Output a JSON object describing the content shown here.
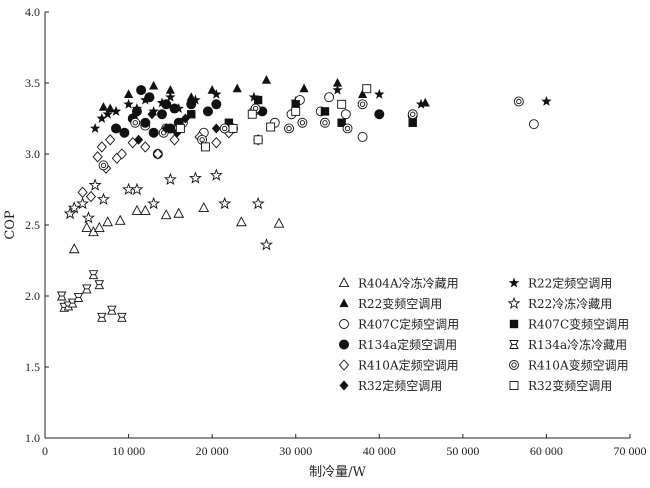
{
  "chart_data": {
    "type": "scatter",
    "xlabel": "制冷量/W",
    "ylabel": "COP",
    "xlim": [
      0,
      70000
    ],
    "ylim": [
      1.0,
      4.0
    ],
    "x_ticks": [
      0,
      10000,
      20000,
      30000,
      40000,
      50000,
      60000,
      70000
    ],
    "x_tick_labels": [
      "0",
      "10 000",
      "20 000",
      "30 000",
      "40 000",
      "50 000",
      "60 000",
      "70 000"
    ],
    "y_ticks": [
      1.0,
      1.5,
      2.0,
      2.5,
      3.0,
      3.5,
      4.0
    ],
    "y_tick_labels": [
      "1.0",
      "1.5",
      "2.0",
      "2.5",
      "3.0",
      "3.5",
      "4.0"
    ],
    "grid": false,
    "legend_position": "bottom-right",
    "series": [
      {
        "name": "R404A冷冻冷藏用",
        "marker": "triangle-open",
        "points": [
          [
            3500,
            2.33
          ],
          [
            5000,
            2.48
          ],
          [
            5800,
            2.45
          ],
          [
            6500,
            2.48
          ],
          [
            7500,
            2.52
          ],
          [
            9000,
            2.53
          ],
          [
            11000,
            2.6
          ],
          [
            12000,
            2.6
          ],
          [
            14500,
            2.57
          ],
          [
            16000,
            2.58
          ],
          [
            19000,
            2.62
          ],
          [
            23500,
            2.52
          ],
          [
            28000,
            2.51
          ]
        ]
      },
      {
        "name": "R22定频空调用",
        "marker": "star-filled",
        "points": [
          [
            6000,
            3.18
          ],
          [
            6800,
            3.25
          ],
          [
            7500,
            3.28
          ],
          [
            8500,
            3.3
          ],
          [
            10000,
            3.35
          ],
          [
            11000,
            3.32
          ],
          [
            12000,
            3.38
          ],
          [
            13000,
            3.3
          ],
          [
            14000,
            3.36
          ],
          [
            15000,
            3.4
          ],
          [
            16000,
            3.32
          ],
          [
            18000,
            3.38
          ],
          [
            20500,
            3.42
          ],
          [
            25000,
            3.4
          ],
          [
            30000,
            3.37
          ],
          [
            35000,
            3.45
          ],
          [
            40000,
            3.42
          ],
          [
            45000,
            3.35
          ],
          [
            60000,
            3.37
          ]
        ]
      },
      {
        "name": "R22变频空调用",
        "marker": "triangle-filled",
        "points": [
          [
            7000,
            3.33
          ],
          [
            7800,
            3.32
          ],
          [
            10000,
            3.42
          ],
          [
            13000,
            3.48
          ],
          [
            15000,
            3.45
          ],
          [
            17500,
            3.4
          ],
          [
            20000,
            3.45
          ],
          [
            23000,
            3.46
          ],
          [
            26500,
            3.52
          ],
          [
            31000,
            3.46
          ],
          [
            35000,
            3.5
          ],
          [
            38000,
            3.42
          ],
          [
            45500,
            3.36
          ]
        ]
      },
      {
        "name": "R22冷冻冷藏用",
        "marker": "star-open",
        "points": [
          [
            3000,
            2.58
          ],
          [
            3500,
            2.62
          ],
          [
            4500,
            2.65
          ],
          [
            5200,
            2.55
          ],
          [
            6000,
            2.78
          ],
          [
            7000,
            2.68
          ],
          [
            10000,
            2.75
          ],
          [
            11000,
            2.75
          ],
          [
            13000,
            2.65
          ],
          [
            15000,
            2.82
          ],
          [
            18000,
            2.83
          ],
          [
            20500,
            2.85
          ],
          [
            21500,
            2.65
          ],
          [
            25500,
            2.65
          ],
          [
            26500,
            2.36
          ]
        ]
      },
      {
        "name": "R407C定频空调用",
        "marker": "circle-open",
        "points": [
          [
            12000,
            3.2
          ],
          [
            14500,
            3.18
          ],
          [
            16500,
            3.22
          ],
          [
            19000,
            3.15
          ],
          [
            22500,
            3.18
          ],
          [
            25000,
            3.3
          ],
          [
            27500,
            3.22
          ],
          [
            29500,
            3.28
          ],
          [
            30500,
            3.38
          ],
          [
            33000,
            3.3
          ],
          [
            34000,
            3.4
          ],
          [
            36000,
            3.28
          ],
          [
            38000,
            3.12
          ],
          [
            44000,
            3.27
          ],
          [
            58500,
            3.21
          ]
        ]
      },
      {
        "name": "R407C变频空调用",
        "marker": "square-filled",
        "points": [
          [
            17500,
            3.28
          ],
          [
            22000,
            3.22
          ],
          [
            25500,
            3.38
          ],
          [
            30000,
            3.35
          ],
          [
            33500,
            3.3
          ],
          [
            35500,
            3.22
          ],
          [
            44000,
            3.22
          ]
        ]
      },
      {
        "name": "R134a定频空调用",
        "marker": "circle-filled",
        "points": [
          [
            8500,
            3.18
          ],
          [
            9500,
            3.15
          ],
          [
            10500,
            3.25
          ],
          [
            11000,
            3.3
          ],
          [
            11500,
            3.45
          ],
          [
            12000,
            3.22
          ],
          [
            12500,
            3.4
          ],
          [
            13000,
            3.15
          ],
          [
            13500,
            3.0
          ],
          [
            14000,
            3.28
          ],
          [
            14500,
            3.35
          ],
          [
            15000,
            3.18
          ],
          [
            15500,
            3.32
          ],
          [
            16000,
            3.22
          ],
          [
            17500,
            3.35
          ],
          [
            19500,
            3.3
          ],
          [
            20500,
            3.35
          ],
          [
            26000,
            3.3
          ],
          [
            40000,
            3.28
          ]
        ]
      },
      {
        "name": "R134a冷冻冷藏用",
        "marker": "hourglass-open",
        "points": [
          [
            2000,
            2.0
          ],
          [
            2300,
            1.92
          ],
          [
            2800,
            1.93
          ],
          [
            3300,
            1.95
          ],
          [
            4000,
            1.99
          ],
          [
            5000,
            2.05
          ],
          [
            5800,
            2.15
          ],
          [
            6500,
            2.08
          ],
          [
            6800,
            1.85
          ],
          [
            8000,
            1.9
          ],
          [
            9200,
            1.85
          ]
        ]
      },
      {
        "name": "R410A定频空调用",
        "marker": "diamond-open",
        "points": [
          [
            4500,
            2.73
          ],
          [
            5500,
            2.7
          ],
          [
            6300,
            2.98
          ],
          [
            6800,
            3.05
          ],
          [
            7300,
            2.9
          ],
          [
            7800,
            3.1
          ],
          [
            8600,
            2.97
          ],
          [
            9200,
            3.0
          ],
          [
            10500,
            3.08
          ],
          [
            12000,
            3.05
          ],
          [
            13500,
            3.0
          ],
          [
            15500,
            3.1
          ],
          [
            18500,
            3.12
          ],
          [
            20500,
            3.08
          ],
          [
            22000,
            3.15
          ],
          [
            25500,
            3.1
          ]
        ]
      },
      {
        "name": "R410A变频空调用",
        "marker": "circle-dot",
        "points": [
          [
            7000,
            2.92
          ],
          [
            10800,
            3.22
          ],
          [
            14200,
            3.15
          ],
          [
            18800,
            3.1
          ],
          [
            21500,
            3.18
          ],
          [
            25200,
            3.32
          ],
          [
            29200,
            3.18
          ],
          [
            30800,
            3.22
          ],
          [
            33500,
            3.22
          ],
          [
            36200,
            3.18
          ],
          [
            38000,
            3.35
          ],
          [
            44000,
            3.28
          ],
          [
            56700,
            3.37
          ]
        ]
      },
      {
        "name": "R32定频空调用",
        "marker": "diamond-filled",
        "points": [
          [
            11200,
            3.1
          ],
          [
            12800,
            3.28
          ],
          [
            14500,
            3.18
          ],
          [
            15800,
            3.15
          ],
          [
            16800,
            3.25
          ],
          [
            20500,
            3.18
          ]
        ]
      },
      {
        "name": "R32变频空调用",
        "marker": "square-open",
        "points": [
          [
            16200,
            3.18
          ],
          [
            19200,
            3.05
          ],
          [
            22500,
            3.18
          ],
          [
            24800,
            3.28
          ],
          [
            25500,
            3.1
          ],
          [
            27000,
            3.19
          ],
          [
            30000,
            3.3
          ],
          [
            35500,
            3.35
          ],
          [
            38500,
            3.46
          ]
        ]
      }
    ]
  }
}
